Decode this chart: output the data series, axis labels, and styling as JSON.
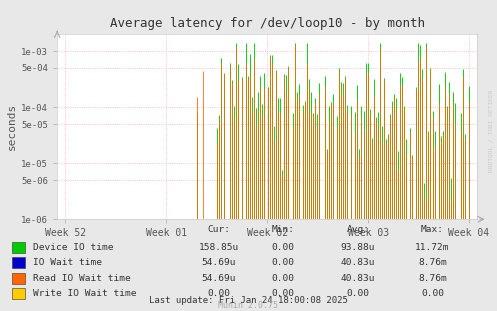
{
  "title": "Average latency for /dev/loop10 - by month",
  "ylabel": "seconds",
  "bg_color": "#e8e8e8",
  "plot_bg_color": "#ffffff",
  "grid_color": "#ffb0b0",
  "xtick_labels": [
    "Week 52",
    "Week 01",
    "Week 02",
    "Week 03",
    "Week 04"
  ],
  "ylim_min": 1e-06,
  "ylim_max": 0.002,
  "series": {
    "device_io": {
      "color": "#00cc00",
      "label": "Device IO time"
    },
    "io_wait": {
      "color": "#0000cc",
      "label": "IO Wait time"
    },
    "read_io_wait": {
      "color": "#ff6600",
      "label": "Read IO Wait time"
    },
    "write_io_wait": {
      "color": "#ffcc00",
      "label": "Write IO Wait time"
    }
  },
  "legend_table": {
    "headers": [
      "Cur:",
      "Min:",
      "Avg:",
      "Max:"
    ],
    "rows": [
      [
        "Device IO time",
        "158.85u",
        "0.00",
        "93.88u",
        "11.72m"
      ],
      [
        "IO Wait time",
        "54.69u",
        "0.00",
        "40.83u",
        "8.76m"
      ],
      [
        "Read IO Wait time",
        "54.69u",
        "0.00",
        "40.83u",
        "8.76m"
      ],
      [
        "Write IO Wait time",
        "0.00",
        "0.00",
        "0.00",
        "0.00"
      ]
    ]
  },
  "last_update": "Last update: Fri Jan 24 18:00:08 2025",
  "munin_version": "Munin 2.0.75",
  "rrdtool_label": "RRDTOOL / TOBI OETIKER"
}
